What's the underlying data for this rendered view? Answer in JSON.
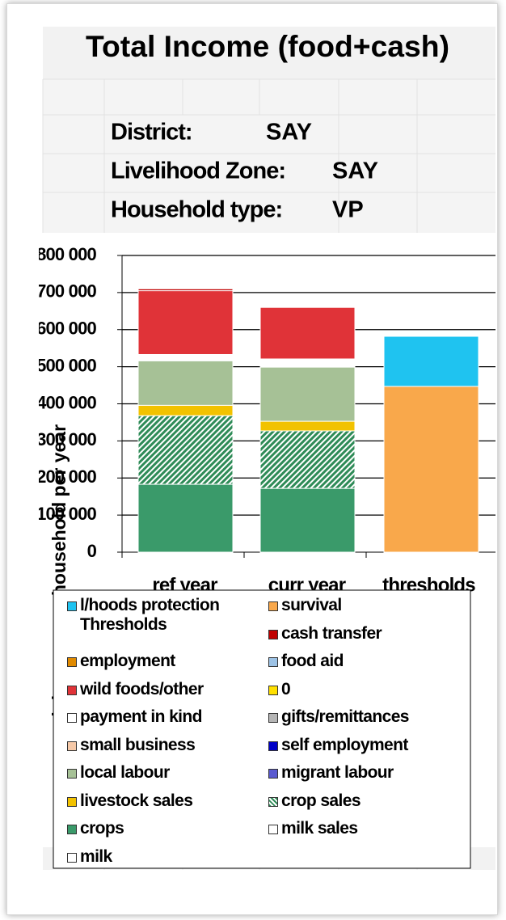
{
  "sheet": {
    "rows": [
      [
        "District:",
        "SAY"
      ],
      [
        "Livelihood Zone:",
        "SAY"
      ],
      [
        "Household type:",
        "VP"
      ]
    ]
  },
  "chart_data": {
    "type": "bar",
    "stacked": true,
    "title": "Total Income (food+cash)",
    "y_label": "cash income per household per year",
    "categories": [
      "ref year",
      "curr year",
      "thresholds"
    ],
    "ylim": [
      0,
      800000
    ],
    "yticks": [
      0,
      {
        "value": 100000,
        "label": "100 000"
      },
      {
        "value": 200000,
        "label": "200 000"
      },
      {
        "value": 300000,
        "label": "300 000"
      },
      {
        "value": 400000,
        "label": "400 000"
      },
      {
        "value": 500000,
        "label": "500 000"
      },
      {
        "value": 600000,
        "label": "600 000"
      },
      {
        "value": 700000,
        "label": "700 000"
      },
      {
        "value": 800000,
        "label": "800 000"
      }
    ],
    "grid": true,
    "series": [
      {
        "name": "crops",
        "color": "#3a9a6a",
        "values": [
          183000,
          172000,
          0
        ]
      },
      {
        "name": "crop sales",
        "color": "#2e8b57",
        "hatch": true,
        "values": [
          185000,
          155000,
          0
        ]
      },
      {
        "name": "livestock sales",
        "color": "#f2c200",
        "values": [
          28000,
          26000,
          0
        ]
      },
      {
        "name": "local labour",
        "color": "#a6c196",
        "values": [
          120000,
          146000,
          0
        ]
      },
      {
        "name": "payment in kind",
        "color": "#ffffff",
        "values": [
          17000,
          22000,
          0
        ]
      },
      {
        "name": "wild foods/other",
        "color": "#e03338",
        "values": [
          172000,
          139000,
          0
        ]
      },
      {
        "name": "cash transfer",
        "color": "#c00000",
        "values": [
          5000,
          0,
          0
        ]
      },
      {
        "name": "survival",
        "color": "#f9a84b",
        "values": [
          0,
          0,
          447000
        ]
      },
      {
        "name": "l/hoods protection Thresholds",
        "color": "#1fc3f0",
        "values": [
          0,
          0,
          135000
        ]
      },
      {
        "name": "employment",
        "color": "#e08a00",
        "values": [
          0,
          0,
          0
        ]
      },
      {
        "name": "food aid",
        "color": "#9dc3e6",
        "values": [
          0,
          0,
          0
        ]
      },
      {
        "name": "0",
        "color": "#ffe000",
        "values": [
          0,
          0,
          0
        ]
      },
      {
        "name": "gifts/remittances",
        "color": "#b5b5b5",
        "values": [
          0,
          0,
          0
        ]
      },
      {
        "name": "small business",
        "color": "#f6c9a8",
        "values": [
          0,
          0,
          0
        ]
      },
      {
        "name": "self employment",
        "color": "#0000c8",
        "values": [
          0,
          0,
          0
        ]
      },
      {
        "name": "migrant labour",
        "color": "#5a5ad0",
        "values": [
          0,
          0,
          0
        ]
      },
      {
        "name": "milk sales",
        "color": "#ffffff",
        "values": [
          0,
          0,
          0
        ]
      },
      {
        "name": "milk",
        "color": "#ffffff",
        "values": [
          0,
          0,
          0
        ]
      }
    ]
  }
}
